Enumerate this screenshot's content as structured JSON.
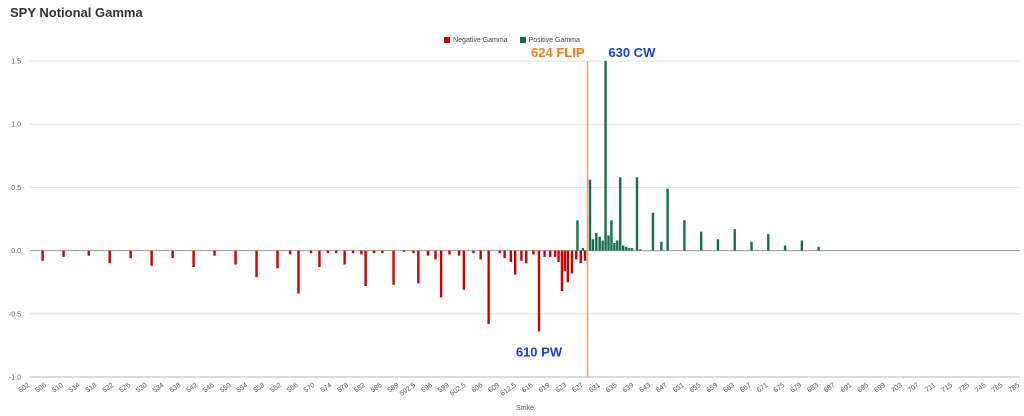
{
  "chart_data": {
    "type": "bar",
    "title": "SPY Notional Gamma",
    "xlabel": "Strike",
    "ylabel": "",
    "ylim": [
      -1.0,
      1.5
    ],
    "y_ticks": [
      "1.5",
      "1.0",
      "0.5",
      "0.0",
      "-0.5",
      "-1.0"
    ],
    "grid": "horizontal",
    "legend_position": "top-center",
    "colors": {
      "negative": "#cc0000",
      "positive": "#1a6e4a",
      "flip_line": "#f5a04a",
      "flip_text": "#f07d1c",
      "wall_text": "#1a3fd6"
    },
    "x_tick_labels": [
      "502",
      "506",
      "510",
      "514",
      "518",
      "522",
      "526",
      "530",
      "534",
      "538",
      "542",
      "546",
      "550",
      "554",
      "558",
      "562",
      "566",
      "570",
      "574",
      "578",
      "582",
      "586",
      "589",
      "592.5",
      "596",
      "599",
      "602.5",
      "606",
      "609",
      "612.5",
      "616",
      "619",
      "623",
      "627",
      "631",
      "635",
      "639",
      "643",
      "647",
      "651",
      "655",
      "659",
      "663",
      "667",
      "671",
      "675",
      "679",
      "683",
      "687",
      "691",
      "695",
      "699",
      "703",
      "707",
      "711",
      "715",
      "725",
      "745",
      "765",
      "785"
    ],
    "series": [
      {
        "name": "Negative Gamma",
        "values": [
          [
            505,
            -0.08
          ],
          [
            510,
            -0.05
          ],
          [
            516,
            -0.04
          ],
          [
            521,
            -0.1
          ],
          [
            526,
            -0.06
          ],
          [
            531,
            -0.12
          ],
          [
            536,
            -0.06
          ],
          [
            541,
            -0.13
          ],
          [
            546,
            -0.04
          ],
          [
            551,
            -0.11
          ],
          [
            556,
            -0.21
          ],
          [
            561,
            -0.14
          ],
          [
            564,
            -0.03
          ],
          [
            566,
            -0.34
          ],
          [
            569,
            -0.02
          ],
          [
            571,
            -0.13
          ],
          [
            573,
            -0.02
          ],
          [
            575,
            -0.02
          ],
          [
            577,
            -0.11
          ],
          [
            579,
            -0.02
          ],
          [
            581,
            -0.03
          ],
          [
            582,
            -0.28
          ],
          [
            584,
            -0.02
          ],
          [
            586,
            -0.02
          ],
          [
            588,
            -0.27
          ],
          [
            590,
            -0.01
          ],
          [
            592,
            -0.02
          ],
          [
            593,
            -0.26
          ],
          [
            595,
            -0.04
          ],
          [
            596.5,
            -0.07
          ],
          [
            597.5,
            -0.37
          ],
          [
            599,
            -0.03
          ],
          [
            601,
            -0.04
          ],
          [
            602,
            -0.31
          ],
          [
            604,
            -0.02
          ],
          [
            605.5,
            -0.07
          ],
          [
            607,
            -0.58
          ],
          [
            609,
            -0.02
          ],
          [
            610,
            -0.06
          ],
          [
            611.3,
            -0.09
          ],
          [
            612.2,
            -0.19
          ],
          [
            613.5,
            -0.08
          ],
          [
            614.5,
            -0.1
          ],
          [
            616,
            -0.03
          ],
          [
            617,
            -0.64
          ],
          [
            618,
            -0.05
          ],
          [
            619,
            -0.05
          ],
          [
            620.2,
            -0.05
          ],
          [
            621,
            -0.09
          ],
          [
            621.8,
            -0.32
          ],
          [
            622.5,
            -0.16
          ],
          [
            623.2,
            -0.25
          ],
          [
            624.2,
            -0.18
          ],
          [
            625.2,
            -0.07
          ],
          [
            626.3,
            -0.1
          ],
          [
            627.3,
            -0.08
          ]
        ]
      },
      {
        "name": "Positive Gamma",
        "values": [
          [
            625.5,
            0.24
          ],
          [
            626.8,
            0.02
          ],
          [
            628.5,
            0.56
          ],
          [
            629.2,
            0.09
          ],
          [
            630,
            0.14
          ],
          [
            630.8,
            0.11
          ],
          [
            631.5,
            0.08
          ],
          [
            632.2,
            1.5
          ],
          [
            632.9,
            0.12
          ],
          [
            633.6,
            0.24
          ],
          [
            634.3,
            0.06
          ],
          [
            635,
            0.08
          ],
          [
            635.7,
            0.58
          ],
          [
            636.4,
            0.04
          ],
          [
            637.1,
            0.03
          ],
          [
            637.8,
            0.02
          ],
          [
            638.5,
            0.02
          ],
          [
            639.7,
            0.58
          ],
          [
            640.5,
            0.01
          ],
          [
            643.5,
            0.3
          ],
          [
            645.5,
            0.07
          ],
          [
            647,
            0.49
          ],
          [
            651,
            0.24
          ],
          [
            655,
            0.15
          ],
          [
            659,
            0.09
          ],
          [
            663,
            0.17
          ],
          [
            667,
            0.07
          ],
          [
            671,
            0.13
          ],
          [
            675,
            0.04
          ],
          [
            679,
            0.08
          ],
          [
            683,
            0.03
          ]
        ]
      }
    ],
    "annotations": [
      {
        "text": "624 FLIP",
        "type": "flip",
        "x": 627.9,
        "y": 1.5
      },
      {
        "text": "630 CW",
        "type": "call-wall",
        "x": 635.5,
        "y": 1.5
      },
      {
        "text": "610 PW",
        "type": "put-wall",
        "x": 617,
        "y": -0.8
      }
    ]
  }
}
